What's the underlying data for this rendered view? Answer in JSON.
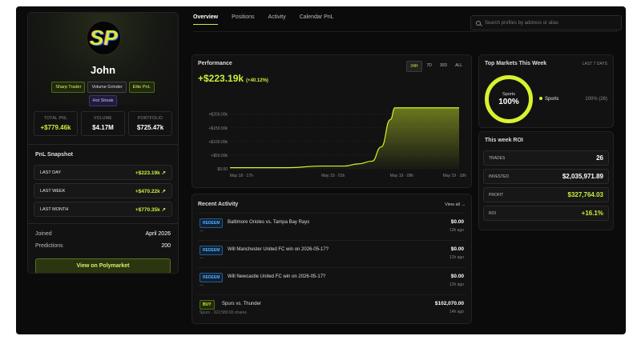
{
  "profile": {
    "avatar_letters": "SP",
    "name": "John",
    "badges": [
      {
        "label": "Sharp Trader",
        "style": "g"
      },
      {
        "label": "Volume Grinder",
        "style": "n"
      },
      {
        "label": "Elite PnL",
        "style": "g"
      },
      {
        "label": "Hot Streak",
        "style": "p"
      }
    ],
    "stats": [
      {
        "label": "TOTAL PNL",
        "value": "+$779.46k"
      },
      {
        "label": "VOLUME",
        "value": "$4.17M"
      },
      {
        "label": "PORTFOLIO",
        "value": "$725.47k"
      }
    ],
    "pnl_snapshot_title": "PnL Snapshot",
    "pnl_rows": [
      {
        "label": "LAST DAY",
        "value": "+$223.19k"
      },
      {
        "label": "LAST WEEK",
        "value": "+$470.22k"
      },
      {
        "label": "LAST MONTH",
        "value": "+$770.35k"
      }
    ],
    "joined_label": "Joined",
    "joined_value": "April 2026",
    "predictions_label": "Predictions",
    "predictions_value": "200",
    "polymarket_button": "View on Polymarket"
  },
  "nav": {
    "tabs": [
      "Overview",
      "Positions",
      "Activity",
      "Calendar PnL"
    ],
    "active_tab": 0,
    "search_placeholder": "Search profiles by address or alias"
  },
  "performance": {
    "title": "Performance",
    "value": "+$223.19k",
    "change": "(+40.12%)",
    "ranges": [
      "24H",
      "7D",
      "30D",
      "ALL"
    ],
    "active_range": 0
  },
  "chart_data": {
    "type": "area",
    "x_tick_labels": [
      "May 18 · 17h",
      "May 19 · 01h",
      "May 19 · 09h",
      "May 19 · 18h"
    ],
    "y_tick_labels": [
      "+$200.00k",
      "+$150.00k",
      "+$100.00k",
      "+$50.00k",
      "$0.00"
    ],
    "ylim": [
      0,
      240000
    ],
    "x": [
      0,
      0.25,
      0.4,
      0.5,
      0.56,
      0.62,
      0.66,
      0.7,
      0.72,
      0.76,
      1.0
    ],
    "y": [
      4000,
      4000,
      10000,
      10000,
      18000,
      28000,
      80000,
      180000,
      223190,
      223190,
      223190
    ],
    "line_color": "#d8f32d"
  },
  "top_markets": {
    "title": "Top Markets This Week",
    "range_label": "LAST 7 DAYS",
    "donut_label": "Sports",
    "donut_value": "100%",
    "donut_fraction": 1.0,
    "legend": [
      {
        "name": "Sports",
        "value": "100% (26)"
      }
    ]
  },
  "roi": {
    "title": "This week ROI",
    "rows": [
      {
        "label": "TRADES",
        "value": "26",
        "accent": false
      },
      {
        "label": "INVESTED",
        "value": "$2,035,971.89",
        "accent": false
      },
      {
        "label": "PROFIT",
        "value": "$327,764.03",
        "accent": true
      },
      {
        "label": "ROI",
        "value": "+16.1%",
        "accent": true
      }
    ]
  },
  "recent": {
    "title": "Recent Activity",
    "view_all": "View all →",
    "items": [
      {
        "tag": "REDEEM",
        "tag_style": "redeem",
        "title": "Baltimore Orioles vs. Tampa Bay Rays",
        "sub": "—",
        "amount": "$0.00",
        "ago": "12h ago"
      },
      {
        "tag": "REDEEM",
        "tag_style": "redeem",
        "title": "Will Manchester United FC win on 2026-05-17?",
        "sub": "—",
        "amount": "$0.00",
        "ago": "12h ago"
      },
      {
        "tag": "REDEEM",
        "tag_style": "redeem",
        "title": "Will Newcastle United FC win on 2026-05-17?",
        "sub": "—",
        "amount": "$0.00",
        "ago": "12h ago"
      },
      {
        "tag": "BUY",
        "tag_style": "buy",
        "title": "Spurs vs. Thunder",
        "sub": "Spurs · 322,580.65 shares",
        "amount": "$102,070.00",
        "ago": "14h ago"
      }
    ]
  }
}
